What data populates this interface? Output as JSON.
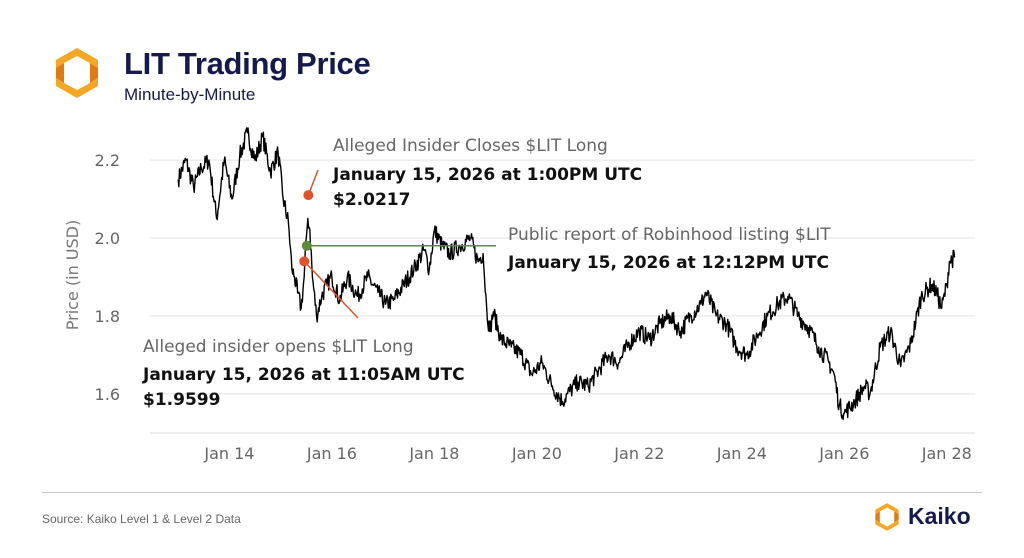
{
  "header": {
    "title": "LIT Trading Price",
    "subtitle": "Minute-by-Minute"
  },
  "footer": {
    "source": "Source: Kaiko Level 1 & Level 2 Data",
    "brand": "Kaiko"
  },
  "colors": {
    "brand_navy": "#141a4e",
    "logo_orange": "#f5a623",
    "logo_orange_dark": "#e07b12",
    "price_line": "#000000",
    "insider_marker": "#e2522b",
    "report_marker": "#5a8a3a",
    "grid": "#e3e3e3"
  },
  "icons": {
    "header_logo": "kaiko-logo-icon",
    "footer_logo": "kaiko-logo-icon"
  },
  "chart_data": {
    "type": "line",
    "ylabel": "Price (in USD)",
    "xlabel": "",
    "x_ticks": [
      "Jan 14",
      "Jan 16",
      "Jan 18",
      "Jan 20",
      "Jan 22",
      "Jan 24",
      "Jan 26",
      "Jan 28"
    ],
    "y_ticks": [
      "1.6",
      "1.8",
      "2.0",
      "2.2"
    ],
    "ylim": [
      1.52,
      2.29
    ],
    "xlim": [
      12.45,
      28.55
    ],
    "grid": "horizontal",
    "series": [
      {
        "x": [
          13.0,
          13.15,
          13.3,
          13.45,
          13.6,
          13.75,
          13.9,
          14.05,
          14.2,
          14.35,
          14.5,
          14.65,
          14.8,
          14.95,
          15.05,
          15.15,
          15.22,
          15.27,
          15.33,
          15.4,
          15.46,
          15.5,
          15.53,
          15.57,
          15.62,
          15.7,
          15.8,
          15.9,
          16.0,
          16.15,
          16.3,
          16.5,
          16.7,
          16.9,
          17.05,
          17.2,
          17.4,
          17.6,
          17.8,
          17.9,
          18.0,
          18.15,
          18.3,
          18.5,
          18.7,
          18.85,
          18.95,
          19.02,
          19.08,
          19.15,
          19.3,
          19.5,
          19.7,
          19.9,
          20.1,
          20.3,
          20.5,
          20.6,
          20.8,
          21.0,
          21.2,
          21.4,
          21.6,
          21.8,
          22.0,
          22.2,
          22.4,
          22.6,
          22.8,
          23.0,
          23.2,
          23.3,
          23.5,
          23.7,
          23.9,
          24.1,
          24.3,
          24.5,
          24.7,
          24.9,
          25.1,
          25.3,
          25.5,
          25.7,
          25.8,
          25.9,
          26.0,
          26.2,
          26.4,
          26.5,
          26.7,
          26.9,
          27.1,
          27.3,
          27.5,
          27.7,
          27.8,
          27.9,
          28.0,
          28.05,
          28.15
        ],
        "values": [
          2.15,
          2.2,
          2.13,
          2.18,
          2.2,
          2.05,
          2.2,
          2.1,
          2.21,
          2.27,
          2.2,
          2.26,
          2.17,
          2.22,
          2.1,
          2.04,
          1.92,
          1.9,
          1.86,
          1.82,
          1.9,
          2.0,
          2.05,
          2.02,
          1.9,
          1.8,
          1.85,
          1.88,
          1.9,
          1.84,
          1.9,
          1.85,
          1.9,
          1.86,
          1.83,
          1.84,
          1.88,
          1.92,
          1.97,
          1.92,
          2.02,
          1.98,
          1.96,
          1.98,
          2.0,
          1.94,
          1.96,
          1.82,
          1.76,
          1.81,
          1.74,
          1.72,
          1.7,
          1.65,
          1.68,
          1.62,
          1.58,
          1.6,
          1.63,
          1.62,
          1.66,
          1.7,
          1.68,
          1.73,
          1.76,
          1.74,
          1.78,
          1.8,
          1.76,
          1.8,
          1.83,
          1.86,
          1.8,
          1.78,
          1.72,
          1.7,
          1.75,
          1.8,
          1.83,
          1.85,
          1.8,
          1.77,
          1.72,
          1.68,
          1.65,
          1.57,
          1.55,
          1.58,
          1.62,
          1.6,
          1.72,
          1.76,
          1.67,
          1.73,
          1.85,
          1.88,
          1.86,
          1.82,
          1.88,
          1.94,
          1.95
        ]
      }
    ],
    "annotations": [
      {
        "id": "insider_closes",
        "line1": "Alleged Insider Closes $LIT Long",
        "line2": "January 15, 2026 at 1:00PM UTC",
        "line3": "$2.0217",
        "x": 15.54,
        "y": 2.11
      },
      {
        "id": "robinhood_report",
        "line1": "Public report of Robinhood listing $LIT",
        "line2": "January 15, 2026 at 12:12PM UTC",
        "x": 15.51,
        "y": 1.98
      },
      {
        "id": "insider_opens",
        "line1": "Alleged insider opens $LIT Long",
        "line2": "January 15, 2026 at 11:05AM UTC",
        "line3": "$1.9599",
        "x": 15.46,
        "y": 1.94
      }
    ]
  }
}
